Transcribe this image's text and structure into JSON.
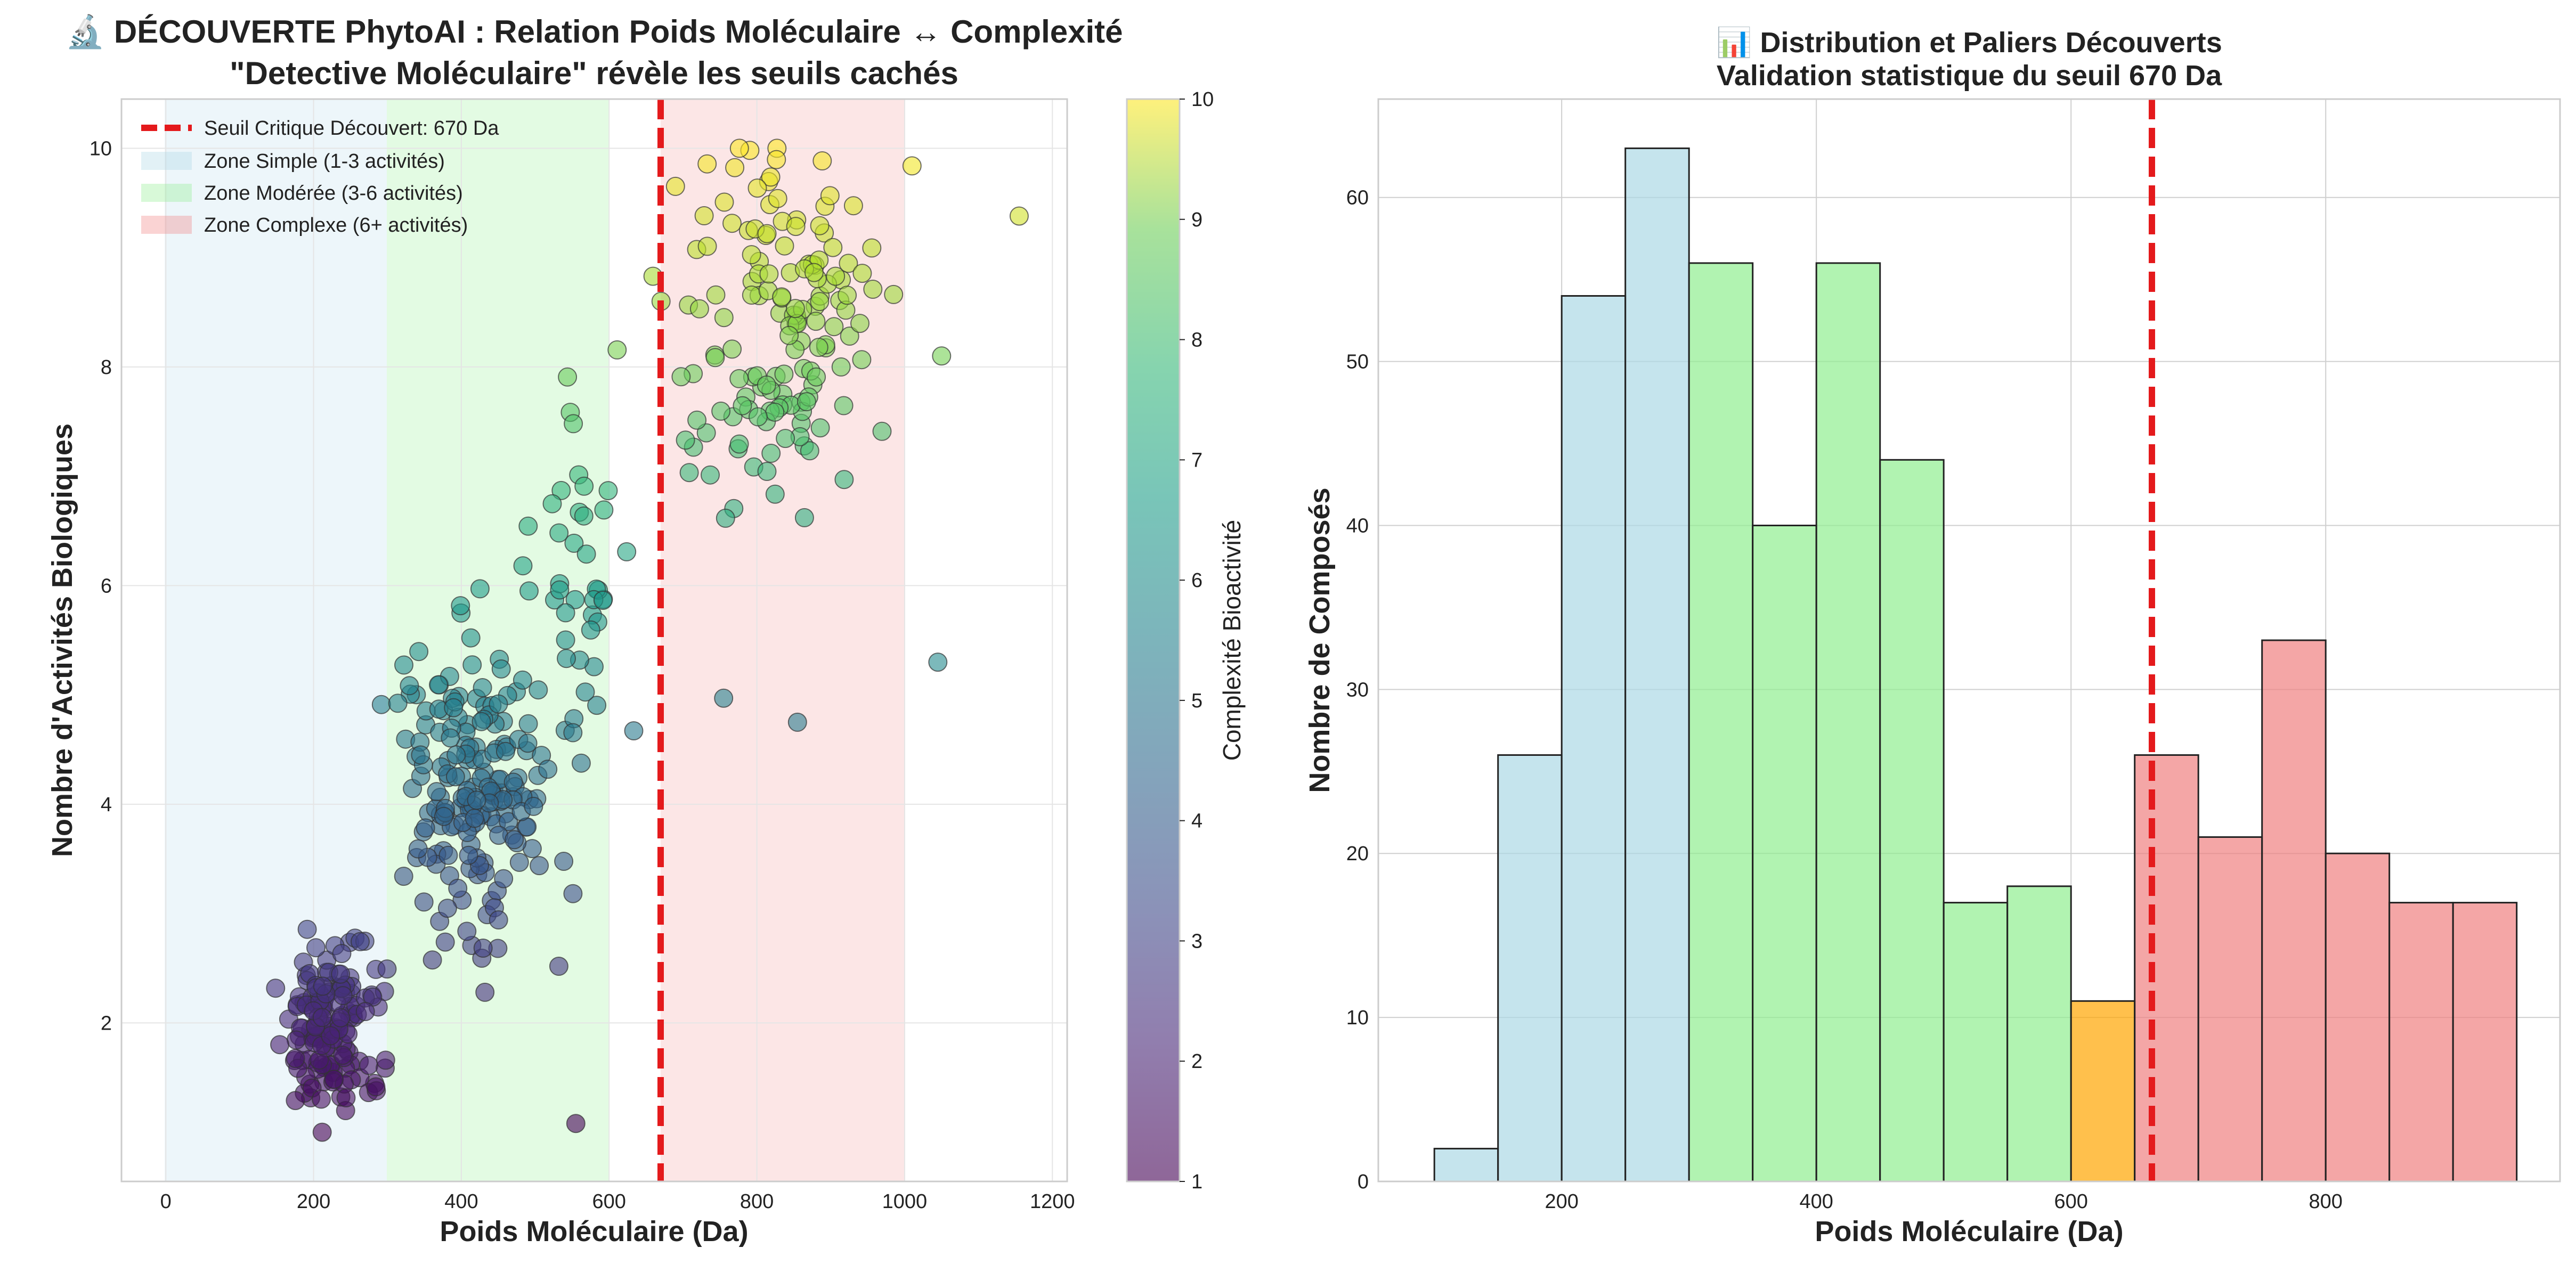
{
  "chart_data": [
    {
      "type": "scatter",
      "title": "🔬 DÉCOUVERTE PhytoAI : Relation Poids Moléculaire ↔ Complexité",
      "subtitle": "\"Detective Moléculaire\" révèle les seuils cachés",
      "xlabel": "Poids Moléculaire (Da)",
      "ylabel": "Nombre d'Activités Biologiques",
      "xlim": [
        -60,
        1220
      ],
      "ylim": [
        0.55,
        10.45
      ],
      "xticks": [
        0,
        200,
        400,
        600,
        800,
        1000,
        1200
      ],
      "yticks": [
        2,
        4,
        6,
        8,
        10
      ],
      "grid": true,
      "threshold": {
        "x": 670,
        "label": "Seuil Critique Découvert: 670 Da",
        "color": "#e41a1c"
      },
      "zones": [
        {
          "label": "Zone Simple (1-3 activités)",
          "x": [
            0,
            300
          ],
          "color": "#add8e6"
        },
        {
          "label": "Zone Modérée (3-6 activités)",
          "x": [
            300,
            600
          ],
          "color": "#90ee90"
        },
        {
          "label": "Zone Complexe (6+ activités)",
          "x": [
            670,
            1000
          ],
          "color": "#f08080"
        }
      ],
      "legend_position": "top-left",
      "colorbar": {
        "label": "Complexité Bioactivité",
        "min": 1,
        "max": 10,
        "ticks": [
          1,
          2,
          3,
          4,
          5,
          6,
          7,
          8,
          9,
          10
        ],
        "colormap": "viridis"
      },
      "point_generation_note": "approximate cloud reproducing the visible point density",
      "point_groups": [
        {
          "n": 150,
          "x_mean": 225,
          "x_sd": 45,
          "y_mean": 2.0,
          "y_sd": 0.55
        },
        {
          "n": 190,
          "x_mean": 420,
          "x_sd": 80,
          "y_mean": 4.2,
          "y_sd": 0.95
        },
        {
          "n": 40,
          "x_mean": 560,
          "x_sd": 60,
          "y_mean": 6.0,
          "y_sd": 1.2
        },
        {
          "n": 150,
          "x_mean": 830,
          "x_sd": 90,
          "y_mean": 8.3,
          "y_sd": 1.3
        }
      ],
      "extra_points": [
        [
          1155,
          9.38
        ],
        [
          1045,
          5.3
        ],
        [
          1050,
          8.1
        ],
        [
          555,
          1.08
        ],
        [
          855,
          4.75
        ],
        [
          755,
          4.97
        ]
      ]
    },
    {
      "type": "bar",
      "title": "📊 Distribution et Paliers Découverts",
      "subtitle": "Validation statistique du seuil 670 Da",
      "xlabel": "Poids Moléculaire (Da)",
      "ylabel": "Nombre de Composés",
      "xlim": [
        56,
        984
      ],
      "ylim": [
        0,
        66
      ],
      "xticks": [
        200,
        400,
        600,
        800
      ],
      "yticks": [
        0,
        10,
        20,
        30,
        40,
        50,
        60
      ],
      "grid": true,
      "threshold": {
        "x": 670,
        "color": "#e41a1c"
      },
      "bins": [
        {
          "x0": 100,
          "x1": 150,
          "value": 2,
          "color": "#add8e6"
        },
        {
          "x0": 150,
          "x1": 200,
          "value": 26,
          "color": "#add8e6"
        },
        {
          "x0": 200,
          "x1": 250,
          "value": 54,
          "color": "#add8e6"
        },
        {
          "x0": 250,
          "x1": 300,
          "value": 63,
          "color": "#add8e6"
        },
        {
          "x0": 300,
          "x1": 350,
          "value": 56,
          "color": "#90ee90"
        },
        {
          "x0": 350,
          "x1": 400,
          "value": 40,
          "color": "#90ee90"
        },
        {
          "x0": 400,
          "x1": 450,
          "value": 56,
          "color": "#90ee90"
        },
        {
          "x0": 450,
          "x1": 500,
          "value": 44,
          "color": "#90ee90"
        },
        {
          "x0": 500,
          "x1": 550,
          "value": 17,
          "color": "#90ee90"
        },
        {
          "x0": 550,
          "x1": 600,
          "value": 18,
          "color": "#90ee90"
        },
        {
          "x0": 600,
          "x1": 650,
          "value": 11,
          "color": "#ffa500"
        },
        {
          "x0": 650,
          "x1": 700,
          "value": 26,
          "color": "#f08080"
        },
        {
          "x0": 700,
          "x1": 750,
          "value": 21,
          "color": "#f08080"
        },
        {
          "x0": 750,
          "x1": 800,
          "value": 33,
          "color": "#f08080"
        },
        {
          "x0": 800,
          "x1": 850,
          "value": 20,
          "color": "#f08080"
        },
        {
          "x0": 850,
          "x1": 900,
          "value": 17,
          "color": "#f08080"
        },
        {
          "x0": 900,
          "x1": 950,
          "value": 17,
          "color": "#f08080"
        }
      ]
    }
  ]
}
